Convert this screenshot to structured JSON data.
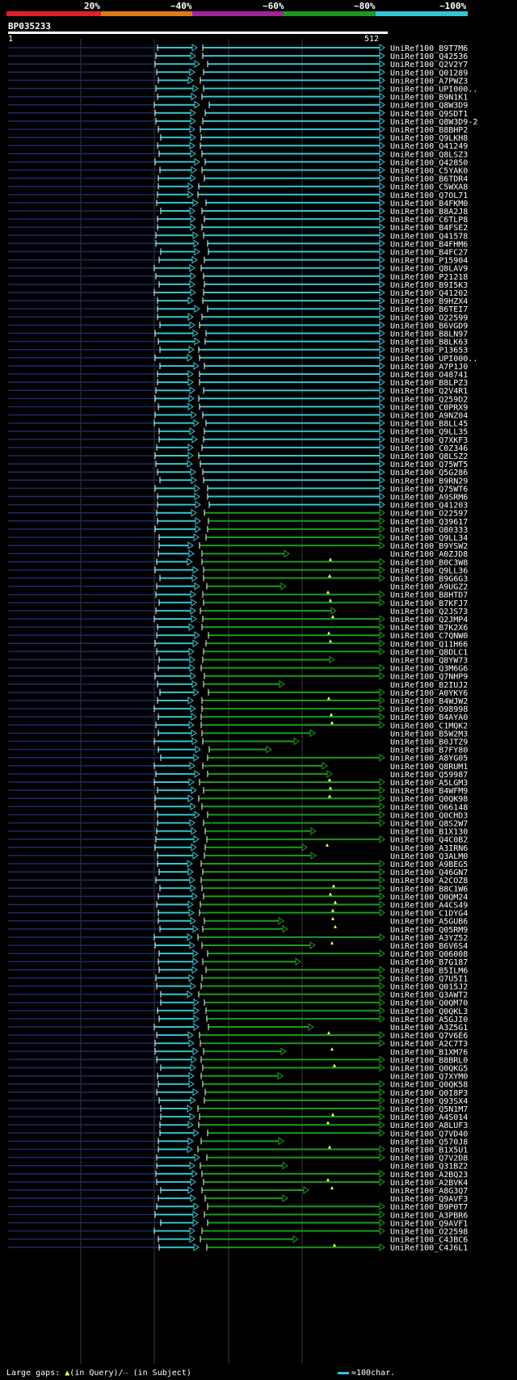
{
  "scale": {
    "labels": [
      "20%",
      "~40%",
      "~60%",
      "~80%",
      "~100%"
    ],
    "colors": [
      "#e0202a",
      "#e07a17",
      "#a0259b",
      "#1d9a1d",
      "#35c4d4"
    ]
  },
  "title": "BP035233",
  "ruler": {
    "start": "1",
    "end": "512"
  },
  "colors": {
    "cyan": "#35c4d4",
    "green": "#1d9a1d",
    "navy": "#1c2a6e",
    "grid": "#3a3a3a",
    "marker": "#ffff66"
  },
  "hits": [
    "UniRef100_B9T7M6",
    "UniRef100_Q42536",
    "UniRef100_Q2V2Y7",
    "UniRef100_Q01289",
    "UniRef100_A7PWZ3",
    "UniRef100_UPI000..",
    "UniRef100_B9N1K1",
    "UniRef100_Q8W3D9",
    "UniRef100_Q9SDT1",
    "UniRef100_Q8W3D9-2",
    "UniRef100_B8BHP2",
    "UniRef100_Q9LKH8",
    "UniRef100_Q41249",
    "UniRef100_Q8LSZ3",
    "UniRef100_Q42850",
    "UniRef100_C5YAK0",
    "UniRef100_B6TDR4",
    "UniRef100_C5WXA8",
    "UniRef100_Q7OL71",
    "UniRef100_B4FKM0",
    "UniRef100_B8A2J8",
    "UniRef100_C6TLP8",
    "UniRef100_B4FSE2",
    "UniRef100_Q41578",
    "UniRef100_B4FHM6",
    "UniRef100_B4FC27",
    "UniRef100_P15904",
    "UniRef100_Q8LAV9",
    "UniRef100_P21218",
    "UniRef100_B9I5K3",
    "UniRef100_Q41202",
    "UniRef100_B9HZX4",
    "UniRef100_B6TEI7",
    "UniRef100_O22599",
    "UniRef100_B6VGD9",
    "UniRef100_B8LN97",
    "UniRef100_B8LK63",
    "UniRef100_P13653",
    "UniRef100_UPI000..",
    "UniRef100_A7P1J0",
    "UniRef100_O48741",
    "UniRef100_B8LPZ3",
    "UniRef100_Q2V4R1",
    "UniRef100_Q259D2",
    "UniRef100_C0PRX9",
    "UniRef100_A9NZ04",
    "UniRef100_B8LL45",
    "UniRef100_Q9LL35",
    "UniRef100_Q7XKF3",
    "UniRef100_C0Z346",
    "UniRef100_Q8LSZ2",
    "UniRef100_Q75WT5",
    "UniRef100_Q5G286",
    "UniRef100_B9RN29",
    "UniRef100_Q75WT6",
    "UniRef100_A9SRM6",
    "UniRef100_Q41203",
    "UniRef100_O22597",
    "UniRef100_Q39617",
    "UniRef100_O80333",
    "UniRef100_Q9LL34",
    "UniRef100_B9YSW2",
    "UniRef100_A0ZJD8",
    "UniRef100_B0C3W8",
    "UniRef100_Q9LL36",
    "UniRef100_B9G6G3",
    "UniRef100_A9UGZ2",
    "UniRef100_B8HTD7",
    "UniRef100_B7KFJ7",
    "UniRef100_Q2JS73",
    "UniRef100_Q2JMP4",
    "UniRef100_B7K2X6",
    "UniRef100_C7QNW0",
    "UniRef100_Q11H66",
    "UniRef100_Q8DLC1",
    "UniRef100_Q8YW73",
    "UniRef100_Q3M6G6",
    "UniRef100_Q7NHP9",
    "UniRef100_B2IUJ2",
    "UniRef100_A0YKY6",
    "UniRef100_B4WJW2",
    "UniRef100_O98998",
    "UniRef100_B4AYA0",
    "UniRef100_C1MQK2",
    "UniRef100_B5W2M3",
    "UniRef100_B0JTZ9",
    "UniRef100_B7FY80",
    "UniRef100_A8YG05",
    "UniRef100_Q8RUM1",
    "UniRef100_Q59987",
    "UniRef100_A5LGM3",
    "UniRef100_B4WFM9",
    "UniRef100_Q0QK98",
    "UniRef100_O66148",
    "UniRef100_Q0CHD3",
    "UniRef100_Q8S2W7",
    "UniRef100_B1X130",
    "UniRef100_Q4C0B2",
    "UniRef100_A3IRN6",
    "UniRef100_Q3ALM0",
    "UniRef100_A9BEG5",
    "UniRef100_Q46GN7",
    "UniRef100_A2COZ8",
    "UniRef100_B8C1W6",
    "UniRef100_Q0QM24",
    "UniRef100_A4CS49",
    "UniRef100_C1DYG4",
    "UniRef100_A5GUB6",
    "UniRef100_Q05RM9",
    "UniRef100_A3YZ52",
    "UniRef100_B6V6S4",
    "UniRef100_Q06008",
    "UniRef100_B7G187",
    "UniRef100_B5ILM6",
    "UniRef100_Q7U5I1",
    "UniRef100_Q015J2",
    "UniRef100_Q3AWT2",
    "UniRef100_Q0QM70",
    "UniRef100_Q0QKL3",
    "UniRef100_A5GJI0",
    "UniRef100_A3Z5G1",
    "UniRef100_Q7V6E6",
    "UniRef100_A2C7T3",
    "UniRef100_B1XM76",
    "UniRef100_B8BRL0",
    "UniRef100_Q0QKG5",
    "UniRef100_Q7XYM0",
    "UniRef100_Q0QK58",
    "UniRef100_Q0I8P3",
    "UniRef100_Q93SX4",
    "UniRef100_Q5N1M7",
    "UniRef100_A4S014",
    "UniRef100_A8LUF3",
    "UniRef100_Q7VD40",
    "UniRef100_Q570J8",
    "UniRef100_B1X5U1",
    "UniRef100_Q7V2D8",
    "UniRef100_Q31BZ2",
    "UniRef100_A2BQ23",
    "UniRef100_A2BVK4",
    "UniRef100_A8G3Q7",
    "UniRef100_Q9AVF3",
    "UniRef100_B9P0T7",
    "UniRef100_A3PBR6",
    "UniRef100_Q9AVF1",
    "UniRef100_O22598",
    "UniRef100_C4JBC6",
    "UniRef100_C4J6L1"
  ],
  "legend": {
    "gaps_prefix": "Large gaps:",
    "gaps_query": "(in Query)/",
    "gaps_subject": "(in Subject)",
    "scale_label": "=100char."
  }
}
